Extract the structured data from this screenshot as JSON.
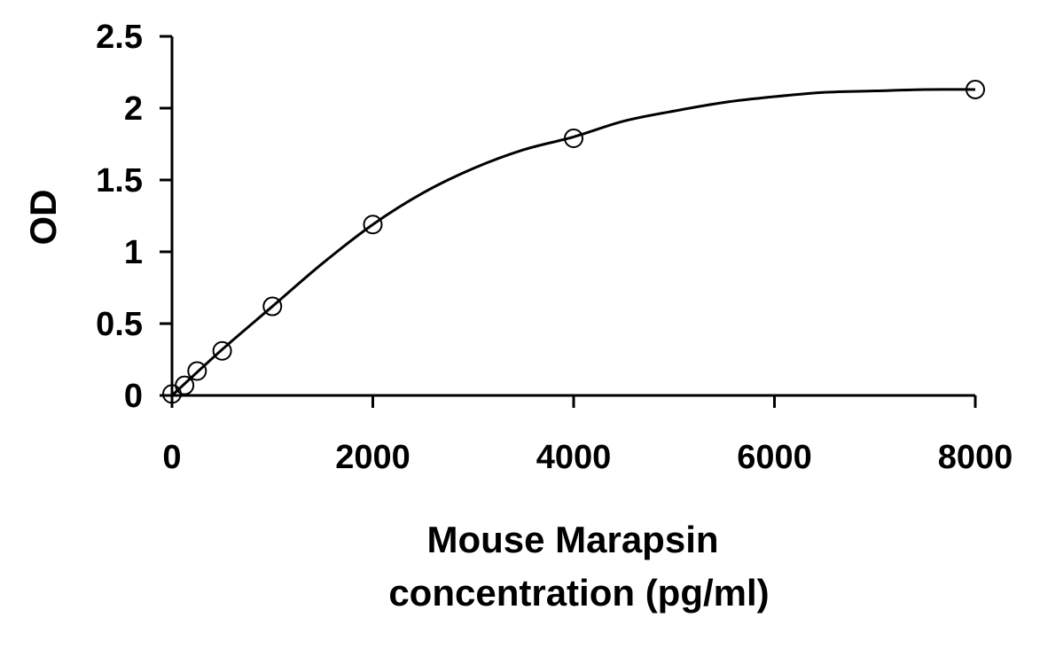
{
  "chart_data": {
    "type": "scatter",
    "title": "",
    "xlabel_lines": [
      "Mouse Marapsin",
      "concentration (pg/ml)"
    ],
    "ylabel": "OD",
    "xlim": [
      0,
      8000
    ],
    "ylim": [
      0,
      2.5
    ],
    "x_ticks": [
      0,
      2000,
      4000,
      6000,
      8000
    ],
    "y_ticks": [
      0,
      0.5,
      1,
      1.5,
      2,
      2.5
    ],
    "x_tick_labels": [
      "0",
      "2000",
      "4000",
      "6000",
      "8000"
    ],
    "y_tick_labels": [
      "0",
      "0.5",
      "1",
      "1.5",
      "2",
      "2.5"
    ],
    "grid": false,
    "legend": "none",
    "series": [
      {
        "marker": "open-circle",
        "x": [
          0,
          125,
          250,
          500,
          1000,
          2000,
          4000,
          8000
        ],
        "y": [
          0.01,
          0.07,
          0.17,
          0.31,
          0.62,
          1.19,
          1.79,
          2.13
        ]
      }
    ],
    "fit_curve": {
      "style": "solid-line",
      "x": [
        0,
        500,
        1000,
        1500,
        2000,
        2500,
        3000,
        3500,
        4000,
        4500,
        5000,
        5500,
        6000,
        6500,
        7000,
        7500,
        8000
      ],
      "y": [
        0.0,
        0.32,
        0.62,
        0.92,
        1.19,
        1.41,
        1.58,
        1.71,
        1.8,
        1.91,
        1.98,
        2.04,
        2.08,
        2.11,
        2.12,
        2.13,
        2.13
      ]
    },
    "colors": {
      "axis": "#000000",
      "marker_stroke": "#000000",
      "curve": "#000000"
    }
  }
}
